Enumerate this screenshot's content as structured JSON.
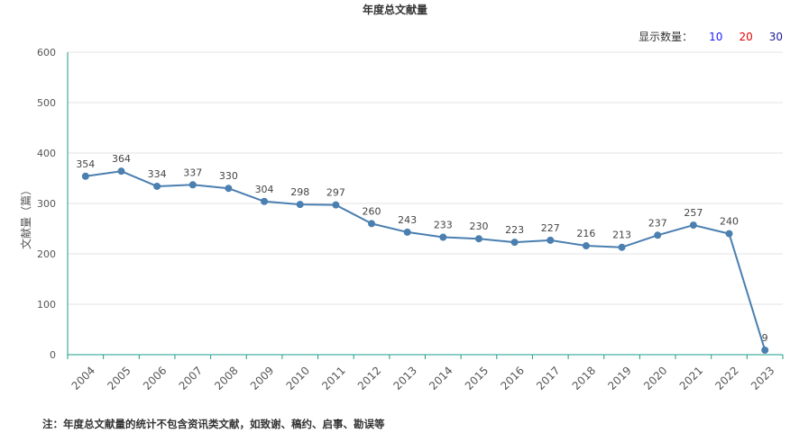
{
  "title": "年度总文献量",
  "count_selector": {
    "label": "显示数量：",
    "options": [
      "10",
      "20",
      "30"
    ]
  },
  "footnote": "注：年度总文献量的统计不包含资讯类文献，如致谢、稿约、启事、勘误等",
  "chart_data": {
    "type": "line",
    "title": "年度总文献量",
    "xlabel": "",
    "ylabel": "文献量（篇）",
    "ylim": [
      0,
      600
    ],
    "yticks": [
      0,
      100,
      200,
      300,
      400,
      500,
      600
    ],
    "grid": true,
    "line_color": "#4a7fb0",
    "categories": [
      "2004",
      "2005",
      "2006",
      "2007",
      "2008",
      "2009",
      "2010",
      "2011",
      "2012",
      "2013",
      "2014",
      "2015",
      "2016",
      "2017",
      "2018",
      "2019",
      "2020",
      "2021",
      "2022",
      "2023"
    ],
    "values": [
      354,
      364,
      334,
      337,
      330,
      304,
      298,
      297,
      260,
      243,
      233,
      230,
      223,
      227,
      216,
      213,
      237,
      257,
      240,
      9
    ]
  }
}
